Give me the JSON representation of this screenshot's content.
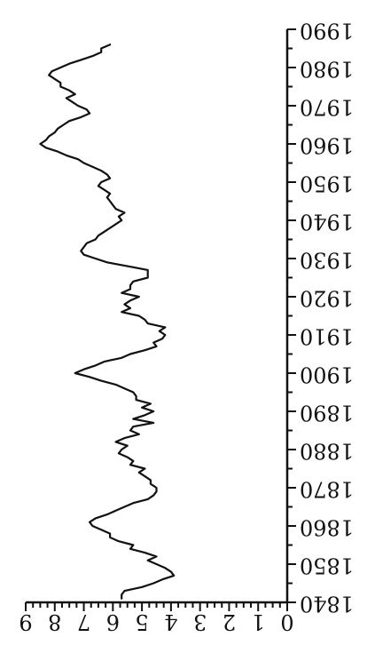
{
  "chart_data": {
    "type": "line",
    "orientation": "rotated-180",
    "title": "",
    "xlabel": "",
    "ylabel": "",
    "xlim": [
      1840,
      1990
    ],
    "ylim": [
      0,
      9
    ],
    "x_ticks": [
      1840,
      1850,
      1860,
      1870,
      1880,
      1890,
      1900,
      1910,
      1920,
      1930,
      1940,
      1950,
      1960,
      1970,
      1980,
      1990
    ],
    "y_ticks": [
      0,
      1,
      2,
      3,
      4,
      5,
      6,
      7,
      8,
      9
    ],
    "grid": false,
    "legend": "none",
    "colors": {
      "line": "#111111",
      "axis": "#111111",
      "background": "#ffffff"
    },
    "series": [
      {
        "x": [
          1841,
          1842,
          1843,
          1844,
          1845,
          1846,
          1847,
          1848,
          1849,
          1850,
          1851,
          1852,
          1853,
          1854,
          1855,
          1856,
          1857,
          1858,
          1859,
          1860,
          1861,
          1862,
          1863,
          1864,
          1865,
          1866,
          1867,
          1868,
          1869,
          1870,
          1871,
          1872,
          1873,
          1874,
          1875,
          1876,
          1877,
          1878,
          1879,
          1880,
          1881,
          1882,
          1883,
          1884,
          1885,
          1886,
          1887,
          1888,
          1889,
          1890,
          1891,
          1892,
          1893,
          1894,
          1895,
          1896,
          1897,
          1898,
          1899,
          1900,
          1901,
          1902,
          1903,
          1904,
          1905,
          1906,
          1907,
          1908,
          1909,
          1910,
          1911,
          1912,
          1913,
          1914,
          1915,
          1916,
          1917,
          1918,
          1919,
          1920,
          1921,
          1922,
          1923,
          1924,
          1925,
          1926,
          1927,
          1928,
          1929,
          1930,
          1931,
          1932,
          1933,
          1934,
          1935,
          1936,
          1937,
          1938,
          1939,
          1940,
          1941,
          1942,
          1943,
          1944,
          1945,
          1946,
          1947,
          1948,
          1949,
          1950,
          1951,
          1952,
          1953,
          1954,
          1955,
          1956,
          1957,
          1958,
          1959,
          1960,
          1961,
          1962,
          1963,
          1964,
          1965,
          1966,
          1967,
          1968,
          1969,
          1970,
          1971,
          1972,
          1973,
          1974,
          1975,
          1976,
          1977,
          1978,
          1979,
          1980,
          1981,
          1982,
          1983,
          1984,
          1985,
          1986
        ],
        "values": [
          5.7,
          5.7,
          5.6,
          5.0,
          4.6,
          4.3,
          3.9,
          4.0,
          4.2,
          4.5,
          4.8,
          4.5,
          4.9,
          5.4,
          5.3,
          5.8,
          6.1,
          6.1,
          6.4,
          6.7,
          6.8,
          6.6,
          6.2,
          5.9,
          5.6,
          5.3,
          4.8,
          4.6,
          4.5,
          4.5,
          4.7,
          4.7,
          4.9,
          5.1,
          4.9,
          5.4,
          5.3,
          5.5,
          5.8,
          5.7,
          5.5,
          5.9,
          5.6,
          5.1,
          5.4,
          5.3,
          4.6,
          5.3,
          4.9,
          4.6,
          5.0,
          4.7,
          5.2,
          5.2,
          5.3,
          5.6,
          5.9,
          6.4,
          6.8,
          7.3,
          7.0,
          6.6,
          6.3,
          5.7,
          5.4,
          4.9,
          4.5,
          4.6,
          4.3,
          4.2,
          4.4,
          4.2,
          4.8,
          4.9,
          5.1,
          5.7,
          5.4,
          5.6,
          5.4,
          5.1,
          5.7,
          5.4,
          5.4,
          5.3,
          4.8,
          4.8,
          4.8,
          5.5,
          6.2,
          6.6,
          7.0,
          7.1,
          7.0,
          6.9,
          6.6,
          6.5,
          6.3,
          6.1,
          5.9,
          5.7,
          5.8,
          5.6,
          5.9,
          6.0,
          6.1,
          6.2,
          6.1,
          6.3,
          6.5,
          6.4,
          6.1,
          6.2,
          6.4,
          6.7,
          7.0,
          7.2,
          7.6,
          7.9,
          8.3,
          8.5,
          8.3,
          8.2,
          8.0,
          7.9,
          7.7,
          7.5,
          7.1,
          6.8,
          6.9,
          7.2,
          7.4,
          7.6,
          7.3,
          7.5,
          7.8,
          7.8,
          8.0,
          8.2,
          8.1,
          7.8,
          7.5,
          7.1,
          6.7,
          6.4,
          6.4,
          6.1
        ]
      }
    ]
  }
}
